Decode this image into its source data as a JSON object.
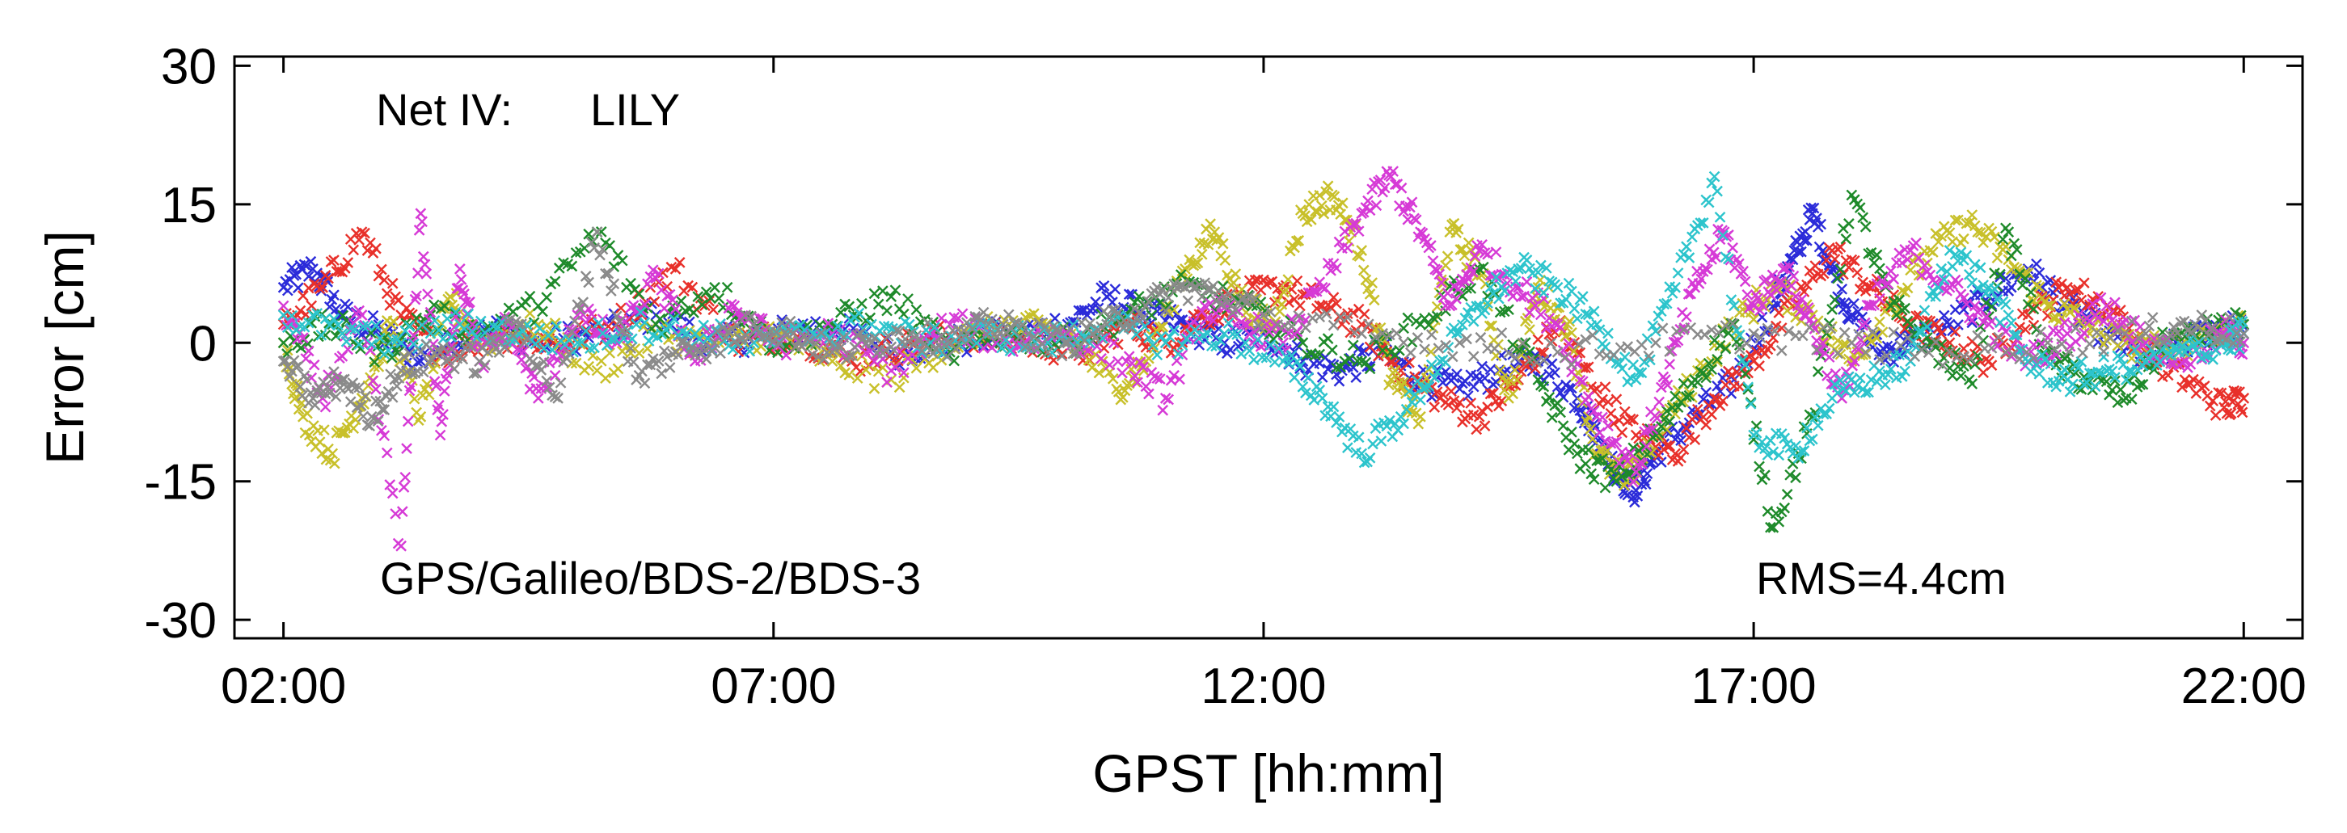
{
  "chart_data": {
    "type": "scatter",
    "title": "",
    "marker": "x",
    "xlabel": "GPST [hh:mm]",
    "ylabel": "Error [cm]",
    "x_unit": "hours",
    "xlim": [
      1.5,
      22.6
    ],
    "ylim": [
      -32,
      31
    ],
    "xticks": [
      2,
      7,
      12,
      17,
      22
    ],
    "xtick_labels": [
      "02:00",
      "07:00",
      "12:00",
      "17:00",
      "22:00"
    ],
    "yticks": [
      30,
      15,
      0,
      -15,
      -30
    ],
    "ytick_labels": [
      "30",
      "15",
      "0",
      "-15",
      "-30"
    ],
    "grid": false,
    "annotations": {
      "network": "Net IV:",
      "station": "LILY",
      "systems": "GPS/Galileo/BDS-2/BDS-3",
      "rms": "RMS=4.4cm"
    },
    "series": [
      {
        "name": "satellite-blue",
        "color": "#2b2bd9",
        "x": [
          2.0,
          2.3,
          2.6,
          3.0,
          3.4,
          4.0,
          4.6,
          5.2,
          5.8,
          6.4,
          7.0,
          7.6,
          8.2,
          8.8,
          9.4,
          10.0,
          10.4,
          10.8,
          11.2,
          11.6,
          12.0,
          12.4,
          12.8,
          13.2,
          13.6,
          14.0,
          14.4,
          14.8,
          15.2,
          15.4,
          15.6,
          15.8,
          16.0,
          16.4,
          16.8,
          17.2,
          17.4,
          17.6,
          17.8,
          18.0,
          18.3,
          18.6,
          19.0,
          19.4,
          19.8,
          20.2,
          20.6,
          21.0,
          21.4,
          21.8,
          22.0
        ],
        "y": [
          6,
          8,
          3,
          1,
          -2,
          2,
          0,
          1,
          3,
          0,
          1,
          2,
          -1,
          0,
          1,
          2,
          5,
          3,
          2,
          0,
          1,
          -2,
          -3,
          -1,
          -4,
          -5,
          -3,
          -2,
          -6,
          -10,
          -14,
          -16,
          -12,
          -8,
          -4,
          4,
          9,
          14,
          8,
          3,
          -1,
          0,
          2,
          5,
          8,
          4,
          1,
          -2,
          0,
          2,
          1
        ]
      },
      {
        "name": "satellite-red",
        "color": "#e8302a",
        "x": [
          2.0,
          2.4,
          2.8,
          3.2,
          3.6,
          4.2,
          4.8,
          5.4,
          6.0,
          6.6,
          7.2,
          7.8,
          8.4,
          9.0,
          9.6,
          10.2,
          10.6,
          11.0,
          11.4,
          11.8,
          12.2,
          12.6,
          13.0,
          13.4,
          13.8,
          14.2,
          14.6,
          15.0,
          15.4,
          15.8,
          16.2,
          16.6,
          17.0,
          17.4,
          17.8,
          18.2,
          18.6,
          19.0,
          19.4,
          19.8,
          20.2,
          20.6,
          21.0,
          21.4,
          21.8,
          22.0
        ],
        "y": [
          2,
          6,
          12,
          3,
          -1,
          1,
          0,
          2,
          8,
          0,
          1,
          -2,
          0,
          1,
          0,
          -1,
          2,
          0,
          3,
          5,
          6,
          4,
          2,
          -3,
          -6,
          -8,
          -4,
          2,
          -5,
          -10,
          -12,
          -6,
          -2,
          4,
          10,
          6,
          2,
          0,
          -2,
          3,
          6,
          4,
          -1,
          -4,
          -7,
          -6
        ]
      },
      {
        "name": "satellite-yellow",
        "color": "#c8c02a",
        "x": [
          2.0,
          2.2,
          2.5,
          2.8,
          3.1,
          3.4,
          3.7,
          4.0,
          4.6,
          5.2,
          5.8,
          6.4,
          7.0,
          7.6,
          8.2,
          8.8,
          9.4,
          10.0,
          10.5,
          10.8,
          11.2,
          11.5,
          11.8,
          12.1,
          12.4,
          12.7,
          13.0,
          13.3,
          13.6,
          13.9,
          14.2,
          14.5,
          14.8,
          15.1,
          15.4,
          15.7,
          16.0,
          16.4,
          16.8,
          17.2,
          17.6,
          18.0,
          18.4,
          18.8,
          19.2,
          19.6,
          20.0,
          20.4,
          20.8,
          21.2,
          21.6,
          22.0
        ],
        "y": [
          0,
          -8,
          -12,
          -6,
          2,
          -8,
          5,
          0,
          2,
          -3,
          1,
          0,
          1,
          -2,
          -4,
          0,
          2,
          1,
          -5,
          -2,
          8,
          12,
          4,
          2,
          14,
          16,
          10,
          -4,
          -8,
          12,
          8,
          -6,
          6,
          2,
          -12,
          -15,
          -10,
          -4,
          2,
          6,
          3,
          -2,
          4,
          10,
          13,
          9,
          4,
          2,
          0,
          -1,
          1,
          2
        ]
      },
      {
        "name": "satellite-green",
        "color": "#1e8a2a",
        "x": [
          2.0,
          2.5,
          3.0,
          3.5,
          4.0,
          4.6,
          5.2,
          5.8,
          6.4,
          7.0,
          7.6,
          8.2,
          8.8,
          9.4,
          10.0,
          10.6,
          11.2,
          11.8,
          12.4,
          13.0,
          13.6,
          14.2,
          14.8,
          15.2,
          15.6,
          16.0,
          16.4,
          16.8,
          17.2,
          17.6,
          18.0,
          18.4,
          18.8,
          19.2,
          19.6,
          20.0,
          20.4,
          20.8,
          21.2,
          21.6,
          22.0
        ],
        "y": [
          0,
          2,
          -1,
          3,
          1,
          4,
          12,
          2,
          6,
          0,
          2,
          5,
          -1,
          1,
          0,
          3,
          6,
          4,
          0,
          -2,
          2,
          8,
          -4,
          -12,
          -15,
          -10,
          -4,
          2,
          -20,
          -8,
          16,
          4,
          0,
          -4,
          12,
          -2,
          -4,
          -6,
          0,
          1,
          2
        ]
      },
      {
        "name": "satellite-magenta",
        "color": "#d63ad6",
        "x": [
          2.0,
          2.4,
          2.8,
          3.2,
          3.4,
          3.6,
          3.8,
          4.0,
          4.3,
          4.6,
          5.0,
          5.4,
          5.8,
          6.2,
          6.6,
          7.0,
          7.6,
          8.2,
          8.8,
          9.4,
          10.0,
          10.6,
          11.0,
          11.4,
          11.8,
          12.2,
          12.6,
          13.0,
          13.3,
          13.6,
          13.9,
          14.2,
          14.6,
          15.0,
          15.4,
          15.8,
          16.1,
          16.4,
          16.7,
          17.0,
          17.3,
          17.6,
          17.9,
          18.2,
          18.6,
          19.0,
          19.4,
          19.8,
          20.2,
          20.6,
          21.0,
          21.4,
          21.8,
          22.0
        ],
        "y": [
          4,
          -6,
          3,
          -22,
          14,
          -10,
          8,
          -2,
          2,
          -6,
          3,
          0,
          7,
          -2,
          4,
          0,
          1,
          -3,
          2,
          0,
          1,
          -2,
          -6,
          4,
          2,
          0,
          6,
          14,
          18,
          12,
          4,
          10,
          6,
          2,
          -8,
          -14,
          -4,
          6,
          12,
          4,
          8,
          2,
          -6,
          4,
          10,
          6,
          2,
          -2,
          1,
          4,
          0,
          -2,
          1,
          0
        ]
      },
      {
        "name": "satellite-cyan",
        "color": "#2cc4cc",
        "x": [
          2.0,
          2.6,
          3.2,
          3.8,
          4.4,
          5.0,
          5.6,
          6.2,
          6.8,
          7.4,
          8.0,
          8.6,
          9.2,
          9.8,
          10.4,
          11.0,
          11.6,
          12.2,
          12.6,
          13.0,
          13.4,
          13.8,
          14.2,
          14.6,
          15.0,
          15.4,
          15.8,
          16.2,
          16.6,
          17.0,
          17.4,
          17.8,
          18.2,
          18.6,
          19.0,
          19.4,
          19.8,
          20.2,
          20.6,
          21.0,
          21.4,
          21.8,
          22.0
        ],
        "y": [
          3,
          1,
          0,
          2,
          1,
          0,
          2,
          1,
          0,
          1,
          2,
          0,
          1,
          0,
          2,
          0,
          1,
          -2,
          -6,
          -12,
          -8,
          -2,
          4,
          8,
          6,
          2,
          -4,
          6,
          18,
          -10,
          -12,
          -6,
          -4,
          -2,
          10,
          6,
          -2,
          -4,
          -3,
          -2,
          -1,
          0,
          1
        ]
      },
      {
        "name": "satellite-gray",
        "color": "#8a8a8a",
        "x": [
          2.0,
          2.3,
          2.6,
          2.9,
          3.2,
          3.6,
          4.0,
          4.4,
          4.8,
          5.2,
          5.6,
          6.0,
          6.4,
          6.8,
          7.2,
          7.6,
          8.0,
          8.4,
          8.8,
          9.2,
          9.6,
          10.0,
          10.4,
          10.8,
          11.2,
          11.6,
          12.0,
          13.0,
          14.0,
          15.0,
          16.0,
          17.0,
          18.0,
          19.0,
          20.0,
          21.0,
          21.5,
          22.0
        ],
        "y": [
          -2,
          -6,
          -4,
          -8,
          -3,
          -1,
          -2,
          2,
          -6,
          12,
          -4,
          -1,
          0,
          2,
          1,
          -1,
          0,
          1,
          0,
          2,
          1,
          0,
          2,
          4,
          6,
          5,
          3,
          1,
          0,
          -1,
          0,
          1,
          0,
          -1,
          0,
          1,
          2,
          1
        ]
      }
    ]
  }
}
